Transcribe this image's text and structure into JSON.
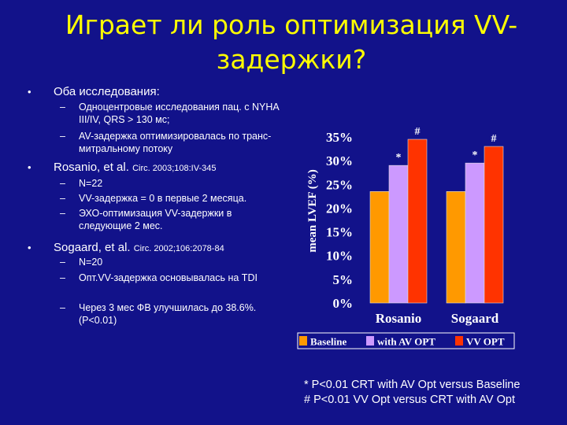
{
  "title": {
    "line1": "Играет ли роль оптимизация VV-",
    "line2": "задержки?"
  },
  "bullets": [
    {
      "text": "Оба исследования:",
      "subs": [
        "Одноцентровые исследования пац. с NYHA III/IV,  QRS > 130 мс;",
        "AV-задержка оптимизировалась по транс-митральному потоку"
      ]
    },
    {
      "text": "Rosanio, et al. ",
      "ref": "Circ. 2003;108:IV-345",
      "subs": [
        "N=22",
        "VV-задержка = 0 в первые 2 месяца.",
        "ЭХО-оптимизация VV-задержки в следующие 2 мес."
      ]
    },
    {
      "text": "Sogaard, et al. ",
      "ref": "Circ. 2002;106:2078-84",
      "subs": [
        "N=20",
        "Опт.VV-задержка основывалась на TDI",
        "Через 3 мес ФВ улучшилась до 38.6%. (P<0.01)"
      ]
    }
  ],
  "bullet_symbol": "•",
  "dash_symbol": "–",
  "chart_data": {
    "type": "bar",
    "categories": [
      "Rosanio",
      "Sogaard"
    ],
    "series": [
      {
        "name": "Baseline",
        "values": [
          23.5,
          23.5
        ],
        "color": "#ff9900"
      },
      {
        "name": "with AV OPT",
        "values": [
          29,
          29.5
        ],
        "color": "#cc99ff"
      },
      {
        "name": "VV OPT",
        "values": [
          34.5,
          33
        ],
        "color": "#ff3300"
      }
    ],
    "annotations": [
      {
        "category": "Rosanio",
        "series": "with AV OPT",
        "text": "*"
      },
      {
        "category": "Rosanio",
        "series": "VV OPT",
        "text": "#"
      },
      {
        "category": "Sogaard",
        "series": "with AV OPT",
        "text": "*"
      },
      {
        "category": "Sogaard",
        "series": "VV OPT",
        "text": "#"
      }
    ],
    "ylabel": "mean LVEF (%)",
    "ylim": [
      0,
      35
    ],
    "yticks": [
      "0%",
      "5%",
      "10%",
      "15%",
      "20%",
      "25%",
      "30%",
      "35%"
    ],
    "grid": false,
    "legend": "bottom"
  },
  "footnotes": [
    "* P<0.01 CRT with AV Opt versus Baseline",
    "# P<0.01 VV Opt versus CRT with AV Opt"
  ],
  "colors": {
    "background": "#12128a",
    "title": "#ffff00",
    "text": "#ffffff"
  }
}
